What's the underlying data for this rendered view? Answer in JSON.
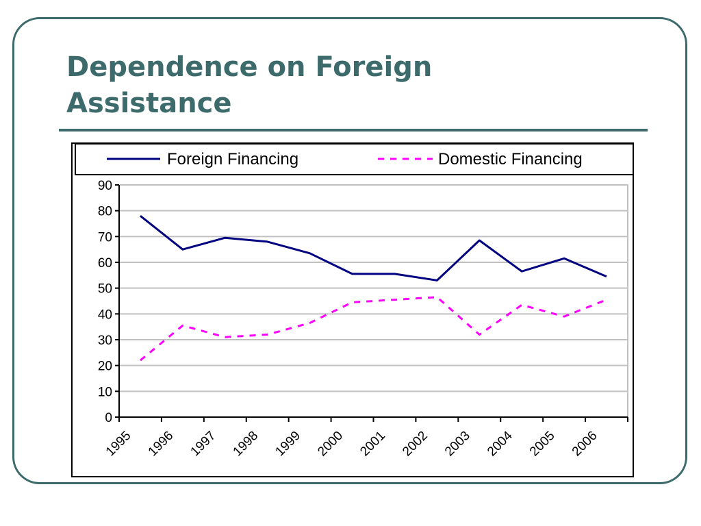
{
  "slide": {
    "title_line1": "Dependence on Foreign",
    "title_line2": "Assistance"
  },
  "colors": {
    "title": "#3d6b6c",
    "foreign": "#000080",
    "domestic": "#ff00ff",
    "grid": "#c0c0c0"
  },
  "chart_data": {
    "type": "line",
    "title": "",
    "xlabel": "",
    "ylabel": "",
    "categories": [
      "1995",
      "1996",
      "1997",
      "1998",
      "1999",
      "2000",
      "2001",
      "2002",
      "2003",
      "2004",
      "2005",
      "2006"
    ],
    "ylim": [
      0,
      90
    ],
    "yticks": [
      0,
      10,
      20,
      30,
      40,
      50,
      60,
      70,
      80,
      90
    ],
    "grid": true,
    "legend_position": "top",
    "series": [
      {
        "name": "Foreign Financing",
        "style": "solid",
        "color": "#000080",
        "values": [
          78,
          65,
          69.5,
          68,
          63.5,
          55.5,
          55.5,
          53,
          68.5,
          56.5,
          61.5,
          54.5
        ]
      },
      {
        "name": "Domestic Financing",
        "style": "dashed",
        "color": "#ff00ff",
        "values": [
          22,
          35.5,
          31,
          32,
          36.5,
          44.5,
          45.5,
          46.5,
          32,
          43.5,
          39,
          45.5
        ]
      }
    ]
  }
}
